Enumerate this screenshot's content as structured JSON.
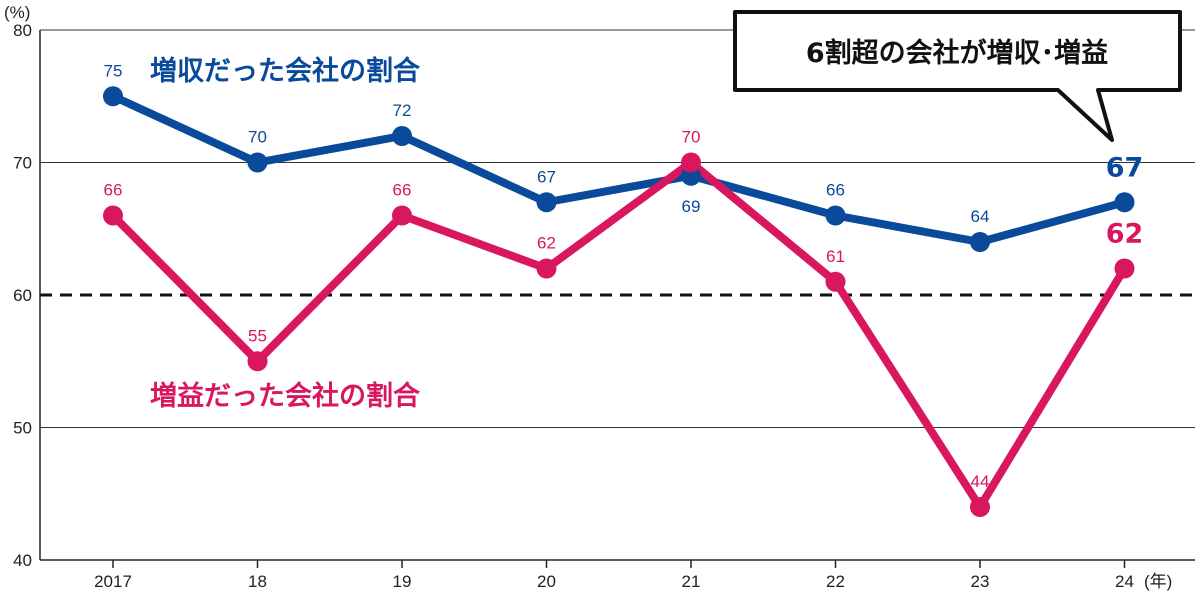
{
  "chart_data": {
    "type": "line",
    "categories": [
      "2017",
      "18",
      "19",
      "20",
      "21",
      "22",
      "23",
      "24"
    ],
    "x_unit": "(年)",
    "y_unit": "(%)",
    "ylim": [
      40,
      80
    ],
    "yticks": [
      40,
      50,
      60,
      70,
      80
    ],
    "grid": true,
    "reference_line": {
      "value": 60,
      "style": "dashed"
    },
    "series": [
      {
        "name": "増収だった会社の割合",
        "color": "#0a4a9a",
        "values": [
          75,
          70,
          72,
          67,
          69,
          66,
          64,
          67
        ]
      },
      {
        "name": "増益だった会社の割合",
        "color": "#d9175f",
        "values": [
          66,
          55,
          66,
          62,
          70,
          61,
          44,
          62
        ]
      }
    ],
    "annotation": "6割超の会社が増収･増益"
  }
}
